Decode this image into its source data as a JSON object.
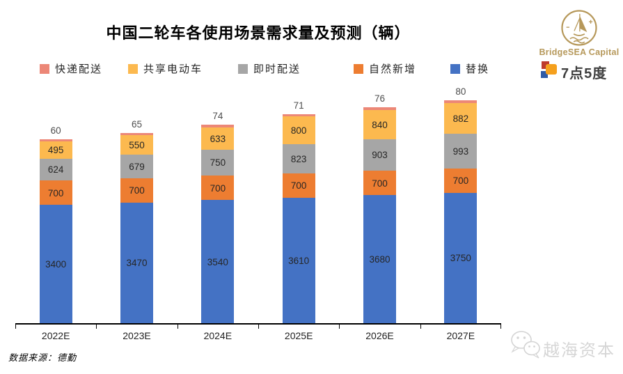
{
  "chart_data": {
    "type": "bar",
    "stacked": true,
    "title": "中国二轮车各使用场景需求量及预测（辆）",
    "categories": [
      "2022E",
      "2023E",
      "2024E",
      "2025E",
      "2026E",
      "2027E"
    ],
    "series": [
      {
        "name": "替换",
        "color": "#4472C4",
        "values": [
          3400,
          3470,
          3540,
          3610,
          3680,
          3750
        ]
      },
      {
        "name": "自然新增",
        "color": "#ED7D31",
        "values": [
          700,
          700,
          700,
          700,
          700,
          700
        ]
      },
      {
        "name": "即时配送",
        "color": "#A6A6A6",
        "values": [
          624,
          679,
          750,
          823,
          903,
          993
        ]
      },
      {
        "name": "共享电动车",
        "color": "#FCB94F",
        "values": [
          495,
          550,
          633,
          800,
          840,
          882
        ]
      },
      {
        "name": "快递配送",
        "color": "#EC8777",
        "values": [
          60,
          65,
          74,
          71,
          76,
          80
        ],
        "label_outside": true
      }
    ],
    "legend": [
      "快递配送",
      "共享电动车",
      "即时配送",
      "自然新增",
      "替换"
    ],
    "legend_position": "top",
    "value_labels": true,
    "grid": false,
    "y_axis_visible": false,
    "xlabel": "",
    "ylabel": ""
  },
  "branding": {
    "bridgesea_name": "BridgeSEA Capital",
    "bridgesea_color": "#B6985A",
    "qidianwudu_name": "7点5度",
    "watermark_name": "越海资本"
  },
  "footer": {
    "source": "数据来源：德勤"
  }
}
